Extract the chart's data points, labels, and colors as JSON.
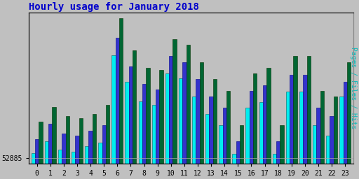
{
  "title": "Hourly usage for January 2018",
  "ylabel": "Pages / Files / Hits",
  "hours": [
    0,
    1,
    2,
    3,
    4,
    5,
    6,
    7,
    8,
    9,
    10,
    11,
    12,
    13,
    14,
    15,
    16,
    17,
    18,
    19,
    20,
    21,
    22,
    23
  ],
  "hits": [
    53250,
    53380,
    53300,
    53280,
    53320,
    53400,
    54150,
    53870,
    53720,
    53700,
    53970,
    53920,
    53770,
    53620,
    53520,
    53220,
    53670,
    53720,
    53220,
    53820,
    53820,
    53520,
    53470,
    53770
  ],
  "files": [
    53100,
    53230,
    53150,
    53130,
    53170,
    53220,
    53980,
    53730,
    53580,
    53530,
    53820,
    53770,
    53620,
    53470,
    53370,
    53080,
    53520,
    53570,
    53080,
    53660,
    53660,
    53370,
    53300,
    53600
  ],
  "pages": [
    52980,
    53080,
    53010,
    52990,
    53040,
    53070,
    53830,
    53600,
    53430,
    53400,
    53670,
    53630,
    53470,
    53320,
    53220,
    52970,
    53370,
    53420,
    52970,
    53510,
    53510,
    53220,
    53130,
    53470
  ],
  "ymin": 52885,
  "ymax": 54200,
  "bar_width": 0.28,
  "hits_color": "#006633",
  "files_color": "#3333cc",
  "pages_color": "#00eeee",
  "bg_color": "#c0c0c0",
  "plot_bg": "#c0c0c0",
  "title_color": "#0000cc",
  "ylabel_color": "#00bbbb",
  "ytick_label": "52885",
  "title_fontsize": 10,
  "ylabel_fontsize": 7,
  "tick_fontsize": 7
}
